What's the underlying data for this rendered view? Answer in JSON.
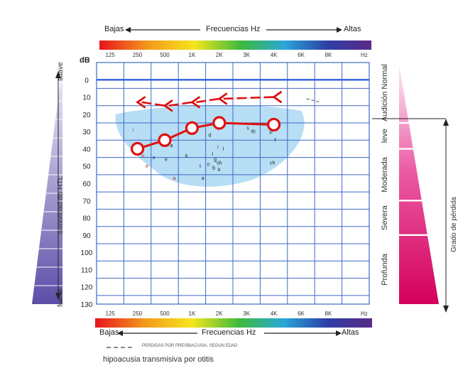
{
  "top_bar": {
    "left_label": "Bajas",
    "title": "Frecuencias Hz",
    "right_label": "Altas"
  },
  "bottom_bar": {
    "left_label": "Bajas",
    "title": "Frecuencias Hz",
    "right_label": "Altas"
  },
  "left_scale": {
    "top_label": "suave",
    "axis_label": "Sonoridad dB HTL",
    "bottom_label": "fuerte"
  },
  "right_scale": {
    "zones": [
      {
        "label": "Audición Normal",
        "from_db": -10,
        "to_db": 25
      },
      {
        "label": "leve",
        "from_db": 25,
        "to_db": 40
      },
      {
        "label": "Moderada",
        "from_db": 40,
        "to_db": 70
      },
      {
        "label": "Severa",
        "from_db": 70,
        "to_db": 90
      },
      {
        "label": "Profunda",
        "from_db": 90,
        "to_db": 130
      }
    ],
    "axis_label": "Grado de pérdida"
  },
  "legend": {
    "dashed_line_label": "PERDIDAS POR PRESBIACUSIA, SEGUN EDAD"
  },
  "caption": "hipoacusia transmisiva por otitis",
  "chart_data": {
    "type": "line",
    "y_unit_label": "dB",
    "x_unit_label": "Hz",
    "x_ticks": [
      "125",
      "250",
      "500",
      "1K",
      "2K",
      "3K",
      "4K",
      "6K",
      "8K"
    ],
    "y_ticks": [
      0,
      10,
      20,
      30,
      40,
      50,
      60,
      70,
      80,
      90,
      100,
      110,
      120,
      130
    ],
    "ylim": [
      -10,
      130
    ],
    "y_inverted": true,
    "grid": true,
    "colors": {
      "grid": "#3f68c8",
      "reference_line": "#2e5fd8",
      "audiogram": "#e01010",
      "speech_banana": "#9fd3f0"
    },
    "reference_line_db": 0,
    "series": [
      {
        "style": "circles-solid",
        "x": [
          "250",
          "500",
          "1K",
          "2K",
          "4K"
        ],
        "y": [
          40,
          35,
          28,
          25,
          26
        ]
      },
      {
        "style": "arrows-dashed",
        "x": [
          "250",
          "500",
          "1K",
          "2K",
          "4K"
        ],
        "y": [
          13,
          15,
          13,
          11,
          10
        ]
      }
    ],
    "speech_sounds": [
      {
        "text": "i",
        "x": 1.85,
        "y": 30,
        "color": "#d02020"
      },
      {
        "text": "u",
        "x": 2.05,
        "y": 41,
        "color": "#222222"
      },
      {
        "text": "o",
        "x": 2.2,
        "y": 45,
        "color": "#d02020"
      },
      {
        "text": "y",
        "x": 3.15,
        "y": 38,
        "color": "#222222"
      },
      {
        "text": "x",
        "x": 2.6,
        "y": 46,
        "color": "#222222"
      },
      {
        "text": "e",
        "x": 3.05,
        "y": 47,
        "color": "#222222"
      },
      {
        "text": "a",
        "x": 3.25,
        "y": 39,
        "color": "#222222"
      },
      {
        "text": "e",
        "x": 2.35,
        "y": 51,
        "color": "#d02020"
      },
      {
        "text": "k",
        "x": 3.8,
        "y": 45,
        "color": "#222222"
      },
      {
        "text": "a",
        "x": 3.35,
        "y": 58,
        "color": "#d02020"
      },
      {
        "text": "a",
        "x": 4.4,
        "y": 58,
        "color": "#222222"
      },
      {
        "text": "d",
        "x": 4.65,
        "y": 33,
        "color": "#222222"
      },
      {
        "text": "i",
        "x": 4.95,
        "y": 40,
        "color": "#222222"
      },
      {
        "text": "l",
        "x": 5.15,
        "y": 41,
        "color": "#222222"
      },
      {
        "text": "l",
        "x": 4.75,
        "y": 44,
        "color": "#222222"
      },
      {
        "text": "g",
        "x": 4.85,
        "y": 47,
        "color": "#222222"
      },
      {
        "text": "sh",
        "x": 5.0,
        "y": 49,
        "color": "#222222"
      },
      {
        "text": "n",
        "x": 4.6,
        "y": 50,
        "color": "#222222"
      },
      {
        "text": "t",
        "x": 4.3,
        "y": 51,
        "color": "#222222"
      },
      {
        "text": "b",
        "x": 4.8,
        "y": 52,
        "color": "#222222"
      },
      {
        "text": "k",
        "x": 5.0,
        "y": 53,
        "color": "#222222"
      },
      {
        "text": "s",
        "x": 6.05,
        "y": 29,
        "color": "#222222"
      },
      {
        "text": "th",
        "x": 6.25,
        "y": 31,
        "color": "#222222"
      },
      {
        "text": "f",
        "x": 7.05,
        "y": 36,
        "color": "#222222"
      },
      {
        "text": "ch",
        "x": 6.95,
        "y": 49,
        "color": "#222222"
      },
      {
        "text": "p",
        "x": 6.9,
        "y": 31,
        "color": "#222222"
      }
    ]
  }
}
